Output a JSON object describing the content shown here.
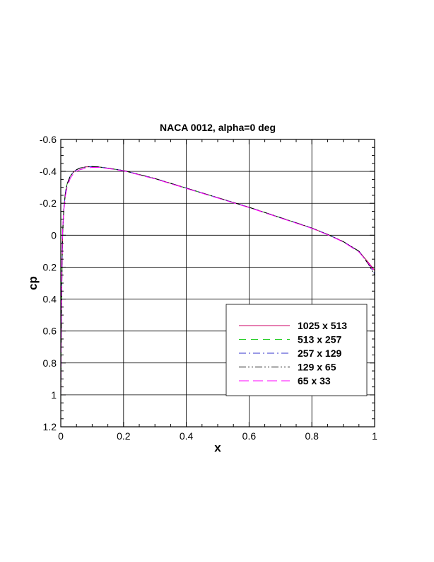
{
  "chart_data": {
    "type": "line",
    "title": "NACA 0012, alpha=0 deg",
    "xlabel": "x",
    "ylabel": "cp",
    "xlim": [
      0,
      1
    ],
    "ylim": [
      1.2,
      -0.6
    ],
    "y_inverted": true,
    "grid": true,
    "legend_position": "bottom-right",
    "x_ticks": [
      "0",
      "0.2",
      "0.4",
      "0.6",
      "0.8",
      "1"
    ],
    "y_ticks": [
      "-0.6",
      "-0.4",
      "-0.2",
      "0",
      "0.2",
      "0.4",
      "0.6",
      "0.8",
      "1",
      "1.2"
    ],
    "x_tick_values": [
      0,
      0.2,
      0.4,
      0.6,
      0.8,
      1
    ],
    "y_tick_values": [
      -0.6,
      -0.4,
      -0.2,
      0,
      0.2,
      0.4,
      0.6,
      0.8,
      1,
      1.2
    ],
    "series": [
      {
        "name": "1025 x 513",
        "color": "#cc0066",
        "dash": "solid",
        "x": [
          0.0,
          0.001,
          0.002,
          0.004,
          0.006,
          0.01,
          0.015,
          0.02,
          0.03,
          0.04,
          0.05,
          0.06,
          0.08,
          0.1,
          0.12,
          0.15,
          0.2,
          0.3,
          0.4,
          0.5,
          0.6,
          0.7,
          0.8,
          0.85,
          0.9,
          0.95,
          0.98,
          1.0
        ],
        "y": [
          1.0,
          0.75,
          0.5,
          0.2,
          -0.02,
          -0.17,
          -0.27,
          -0.32,
          -0.37,
          -0.395,
          -0.41,
          -0.42,
          -0.428,
          -0.43,
          -0.428,
          -0.42,
          -0.405,
          -0.355,
          -0.295,
          -0.235,
          -0.175,
          -0.11,
          -0.045,
          -0.005,
          0.04,
          0.1,
          0.17,
          0.22
        ]
      },
      {
        "name": "513 x 257",
        "color": "#22cc22",
        "dash": "dashed",
        "x": [
          0.0,
          0.001,
          0.002,
          0.004,
          0.006,
          0.01,
          0.015,
          0.02,
          0.03,
          0.04,
          0.05,
          0.06,
          0.08,
          0.1,
          0.12,
          0.15,
          0.2,
          0.3,
          0.4,
          0.5,
          0.6,
          0.7,
          0.8,
          0.85,
          0.9,
          0.95,
          0.98,
          1.0
        ],
        "y": [
          1.0,
          0.75,
          0.5,
          0.2,
          -0.02,
          -0.17,
          -0.27,
          -0.32,
          -0.37,
          -0.395,
          -0.41,
          -0.42,
          -0.428,
          -0.43,
          -0.428,
          -0.42,
          -0.405,
          -0.355,
          -0.295,
          -0.235,
          -0.175,
          -0.11,
          -0.045,
          -0.005,
          0.04,
          0.1,
          0.175,
          0.23
        ]
      },
      {
        "name": "257 x 129",
        "color": "#3333cc",
        "dash": "dashdot",
        "x": [
          0.0,
          0.001,
          0.002,
          0.004,
          0.006,
          0.01,
          0.015,
          0.02,
          0.03,
          0.04,
          0.05,
          0.06,
          0.08,
          0.1,
          0.12,
          0.15,
          0.2,
          0.3,
          0.4,
          0.5,
          0.6,
          0.7,
          0.8,
          0.85,
          0.9,
          0.95,
          0.98,
          1.0
        ],
        "y": [
          1.0,
          0.75,
          0.5,
          0.2,
          -0.02,
          -0.17,
          -0.27,
          -0.32,
          -0.37,
          -0.395,
          -0.41,
          -0.42,
          -0.428,
          -0.43,
          -0.428,
          -0.42,
          -0.405,
          -0.355,
          -0.295,
          -0.235,
          -0.175,
          -0.11,
          -0.045,
          -0.005,
          0.04,
          0.1,
          0.18,
          0.24
        ]
      },
      {
        "name": "129 x 65",
        "color": "#000000",
        "dash": "dashdotdot",
        "x": [
          0.0,
          0.001,
          0.002,
          0.004,
          0.006,
          0.01,
          0.015,
          0.02,
          0.03,
          0.04,
          0.05,
          0.06,
          0.08,
          0.1,
          0.12,
          0.15,
          0.2,
          0.3,
          0.4,
          0.5,
          0.6,
          0.7,
          0.8,
          0.85,
          0.9,
          0.95,
          0.98,
          1.0
        ],
        "y": [
          1.0,
          0.75,
          0.5,
          0.2,
          -0.02,
          -0.17,
          -0.27,
          -0.32,
          -0.37,
          -0.395,
          -0.41,
          -0.42,
          -0.428,
          -0.43,
          -0.428,
          -0.42,
          -0.405,
          -0.355,
          -0.295,
          -0.235,
          -0.175,
          -0.11,
          -0.045,
          -0.005,
          0.04,
          0.1,
          0.18,
          0.25
        ]
      },
      {
        "name": "65 x 33",
        "color": "#ff00ff",
        "dash": "longdash",
        "x": [
          0.0,
          0.001,
          0.002,
          0.004,
          0.006,
          0.01,
          0.015,
          0.02,
          0.03,
          0.04,
          0.05,
          0.06,
          0.08,
          0.1,
          0.12,
          0.15,
          0.2,
          0.3,
          0.4,
          0.5,
          0.6,
          0.7,
          0.8,
          0.85,
          0.9,
          0.95,
          0.98,
          1.0
        ],
        "y": [
          1.0,
          0.72,
          0.45,
          0.15,
          -0.05,
          -0.16,
          -0.25,
          -0.3,
          -0.355,
          -0.385,
          -0.4,
          -0.41,
          -0.42,
          -0.425,
          -0.425,
          -0.418,
          -0.403,
          -0.353,
          -0.293,
          -0.233,
          -0.173,
          -0.108,
          -0.043,
          -0.003,
          0.042,
          0.105,
          0.175,
          0.23
        ]
      }
    ]
  }
}
